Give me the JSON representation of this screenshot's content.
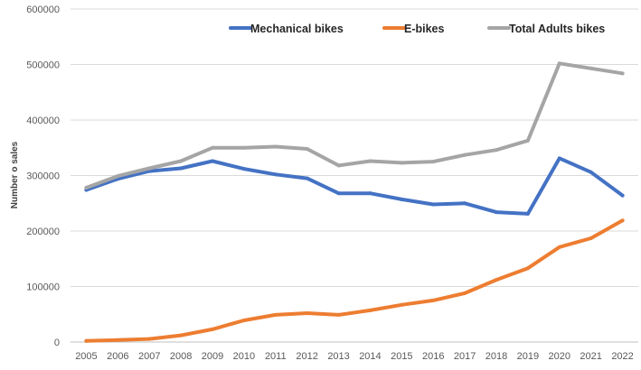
{
  "chart_data": {
    "type": "line",
    "title": "",
    "xlabel": "",
    "ylabel": "Number o sales",
    "ylim": [
      0,
      600000
    ],
    "y_ticks": [
      "0",
      "100000",
      "200000",
      "300000",
      "400000",
      "500000",
      "600000"
    ],
    "grid": true,
    "legend_position": "top-right",
    "categories": [
      "2005",
      "2006",
      "2007",
      "2008",
      "2009",
      "2010",
      "2011",
      "2012",
      "2013",
      "2014",
      "2015",
      "2016",
      "2017",
      "2018",
      "2019",
      "2020",
      "2021",
      "2022"
    ],
    "series": [
      {
        "name": "Mechanical bikes",
        "color": "#4472c4",
        "values": [
          274000,
          294000,
          308000,
          313000,
          326000,
          312000,
          302000,
          295000,
          268000,
          268000,
          257000,
          248000,
          250000,
          234000,
          231000,
          331000,
          306000,
          264000
        ]
      },
      {
        "name": "E-bikes",
        "color": "#ed7d31",
        "values": [
          2000,
          3500,
          5500,
          12000,
          23000,
          39000,
          49000,
          52000,
          49000,
          57000,
          67000,
          75000,
          88000,
          112000,
          133000,
          171000,
          187000,
          219000
        ]
      },
      {
        "name": "Total Adults bikes",
        "color": "#a5a5a5",
        "values": [
          278000,
          299000,
          313000,
          326000,
          350000,
          350000,
          352000,
          348000,
          318000,
          326000,
          323000,
          325000,
          337000,
          346000,
          363000,
          502000,
          493000,
          484000
        ]
      }
    ]
  }
}
